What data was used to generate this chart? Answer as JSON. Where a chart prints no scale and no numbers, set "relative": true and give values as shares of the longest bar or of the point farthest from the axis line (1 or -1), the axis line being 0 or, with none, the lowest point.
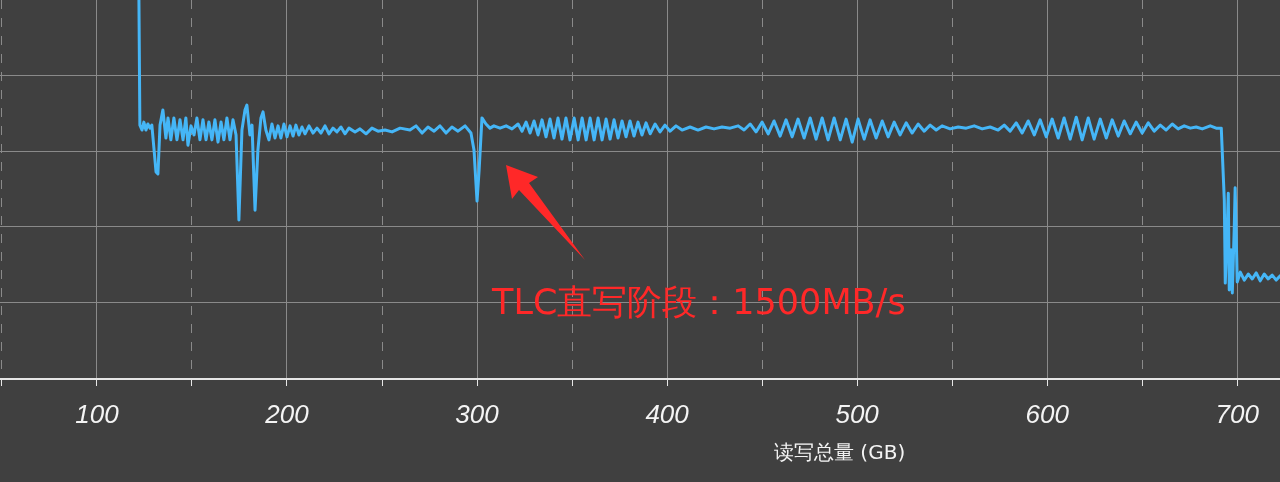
{
  "chart_data": {
    "type": "line",
    "xlabel": "读写总量 (GB)",
    "relative": true,
    "grid": true,
    "tick_labels": "x",
    "line_style": "solid",
    "xlim": [
      49,
      722.5
    ],
    "xticks": [
      {
        "value": 50,
        "label": null
      },
      100,
      {
        "value": 150,
        "label": null
      },
      200,
      {
        "value": 250,
        "label": null
      },
      300,
      {
        "value": 350,
        "label": null
      },
      400,
      {
        "value": 450,
        "label": null
      },
      500,
      {
        "value": 550,
        "label": null
      },
      600,
      {
        "value": 650,
        "label": null
      },
      700
    ],
    "annotations": [
      "TLC直写阶段：1500MB/s"
    ],
    "x": [
      122.1,
      122.6,
      123.7,
      124.7,
      125.8,
      126.8,
      127.9,
      128.9,
      131.1,
      132.1,
      133.2,
      134.7,
      136.3,
      137.4,
      138.9,
      140.5,
      142.1,
      143.7,
      145.3,
      146.8,
      147.9,
      149.5,
      151.1,
      152.6,
      154.2,
      155.8,
      157.4,
      158.9,
      160.5,
      162.1,
      163.7,
      165.3,
      166.8,
      168.4,
      170.0,
      171.6,
      173.2,
      174.7,
      176.3,
      177.9,
      178.9,
      180.5,
      181.6,
      183.2,
      184.7,
      186.3,
      187.4,
      188.9,
      190.5,
      192.1,
      193.7,
      195.3,
      196.8,
      198.4,
      200.0,
      201.6,
      203.2,
      204.7,
      206.3,
      207.9,
      209.5,
      211.6,
      213.7,
      215.8,
      217.9,
      220.0,
      222.1,
      224.2,
      226.3,
      228.4,
      230.5,
      232.6,
      235.8,
      238.4,
      241.6,
      244.7,
      247.9,
      251.6,
      255.3,
      259.5,
      264.7,
      267.9,
      271.1,
      274.2,
      277.4,
      280.5,
      283.7,
      286.8,
      290.0,
      293.7,
      296.8,
      298.4,
      300.0,
      301.1,
      302.6,
      304.7,
      306.8,
      308.9,
      312.1,
      315.3,
      318.4,
      321.6,
      323.7,
      325.8,
      327.9,
      330.0,
      332.1,
      334.2,
      336.3,
      338.4,
      340.5,
      342.6,
      344.7,
      346.8,
      348.9,
      351.1,
      353.2,
      355.3,
      357.4,
      359.5,
      361.6,
      363.7,
      365.8,
      367.9,
      370.0,
      372.1,
      374.2,
      376.3,
      378.4,
      380.5,
      382.6,
      384.7,
      386.8,
      388.9,
      391.1,
      393.7,
      396.3,
      398.9,
      401.6,
      404.7,
      407.9,
      412.1,
      416.3,
      420.5,
      424.7,
      428.9,
      433.2,
      437.4,
      440.5,
      443.7,
      446.8,
      450.0,
      453.2,
      456.3,
      459.5,
      462.6,
      465.8,
      468.9,
      472.1,
      475.3,
      478.4,
      481.6,
      484.7,
      487.9,
      491.1,
      494.2,
      497.4,
      500.5,
      503.7,
      506.8,
      510.0,
      513.2,
      516.3,
      519.5,
      522.6,
      525.8,
      528.9,
      532.1,
      535.3,
      538.4,
      541.6,
      544.7,
      548.9,
      553.2,
      557.4,
      561.6,
      565.8,
      570.0,
      574.2,
      577.4,
      580.5,
      583.7,
      586.8,
      590.0,
      593.2,
      596.3,
      599.5,
      602.6,
      605.8,
      608.9,
      612.1,
      615.3,
      618.4,
      621.6,
      624.7,
      627.9,
      631.1,
      634.2,
      637.4,
      640.5,
      643.7,
      646.8,
      650.0,
      653.2,
      656.3,
      659.5,
      662.6,
      665.8,
      668.9,
      672.1,
      675.3,
      678.4,
      681.6,
      685.8,
      688.9,
      691.6,
      693.2,
      693.7,
      694.7,
      695.3,
      695.8,
      696.8,
      697.4,
      698.4,
      698.9,
      700.0,
      701.6,
      703.7,
      705.8,
      707.9,
      710.0,
      712.1,
      714.2,
      716.3,
      718.4,
      720.5,
      722.5
    ],
    "series": [
      {
        "color": "#45b6f7",
        "values": [
          1.0,
          0.669,
          0.656,
          0.677,
          0.656,
          0.672,
          0.661,
          0.669,
          0.545,
          0.54,
          0.669,
          0.709,
          0.635,
          0.688,
          0.63,
          0.688,
          0.63,
          0.683,
          0.63,
          0.688,
          0.616,
          0.667,
          0.643,
          0.688,
          0.63,
          0.683,
          0.63,
          0.677,
          0.63,
          0.683,
          0.624,
          0.677,
          0.63,
          0.688,
          0.63,
          0.683,
          0.643,
          0.418,
          0.656,
          0.709,
          0.722,
          0.643,
          0.669,
          0.444,
          0.603,
          0.688,
          0.704,
          0.656,
          0.63,
          0.672,
          0.635,
          0.667,
          0.635,
          0.672,
          0.638,
          0.667,
          0.64,
          0.669,
          0.643,
          0.664,
          0.646,
          0.667,
          0.648,
          0.661,
          0.648,
          0.667,
          0.646,
          0.661,
          0.651,
          0.664,
          0.646,
          0.661,
          0.651,
          0.659,
          0.646,
          0.661,
          0.653,
          0.656,
          0.651,
          0.661,
          0.656,
          0.667,
          0.648,
          0.664,
          0.653,
          0.667,
          0.648,
          0.664,
          0.653,
          0.667,
          0.648,
          0.603,
          0.468,
          0.55,
          0.688,
          0.672,
          0.661,
          0.667,
          0.661,
          0.667,
          0.659,
          0.672,
          0.653,
          0.677,
          0.648,
          0.68,
          0.643,
          0.683,
          0.638,
          0.685,
          0.635,
          0.688,
          0.632,
          0.688,
          0.63,
          0.688,
          0.63,
          0.688,
          0.63,
          0.688,
          0.63,
          0.688,
          0.63,
          0.685,
          0.632,
          0.683,
          0.635,
          0.68,
          0.638,
          0.68,
          0.64,
          0.677,
          0.643,
          0.675,
          0.646,
          0.672,
          0.651,
          0.669,
          0.653,
          0.667,
          0.656,
          0.664,
          0.656,
          0.664,
          0.659,
          0.664,
          0.661,
          0.667,
          0.656,
          0.672,
          0.651,
          0.677,
          0.646,
          0.68,
          0.64,
          0.683,
          0.638,
          0.685,
          0.635,
          0.688,
          0.632,
          0.688,
          0.63,
          0.688,
          0.63,
          0.685,
          0.624,
          0.685,
          0.632,
          0.683,
          0.635,
          0.68,
          0.638,
          0.677,
          0.643,
          0.675,
          0.648,
          0.672,
          0.653,
          0.669,
          0.656,
          0.667,
          0.659,
          0.664,
          0.661,
          0.667,
          0.659,
          0.664,
          0.656,
          0.669,
          0.653,
          0.675,
          0.648,
          0.68,
          0.643,
          0.683,
          0.638,
          0.685,
          0.635,
          0.688,
          0.632,
          0.69,
          0.63,
          0.688,
          0.632,
          0.685,
          0.635,
          0.683,
          0.64,
          0.68,
          0.646,
          0.677,
          0.648,
          0.675,
          0.653,
          0.669,
          0.656,
          0.672,
          0.659,
          0.667,
          0.661,
          0.664,
          0.659,
          0.667,
          0.661,
          0.661,
          0.471,
          0.251,
          0.392,
          0.489,
          0.233,
          0.339,
          0.225,
          0.392,
          0.503,
          0.254,
          0.28,
          0.259,
          0.275,
          0.262,
          0.278,
          0.257,
          0.275,
          0.262,
          0.272,
          0.259,
          0.27
        ]
      }
    ]
  }
}
